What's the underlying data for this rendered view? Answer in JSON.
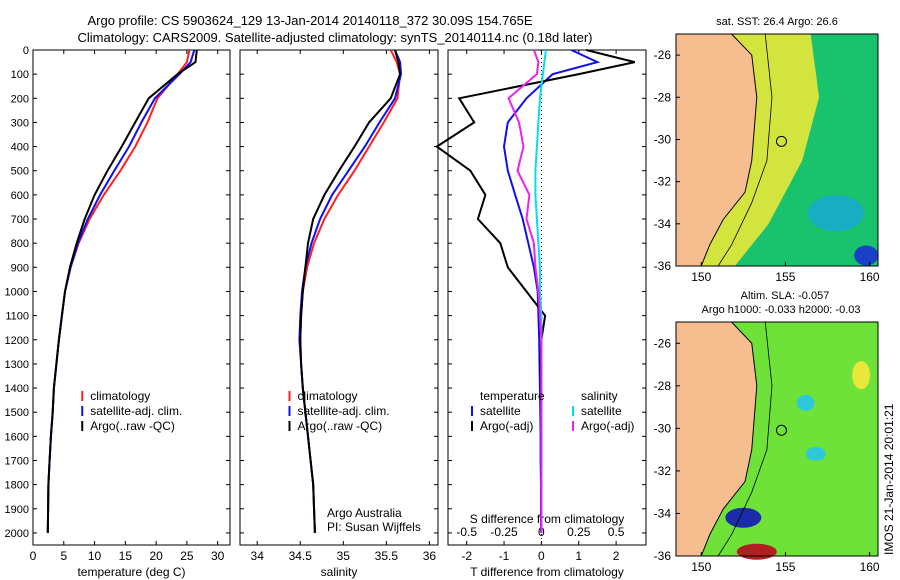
{
  "header": {
    "line1": "Argo profile: CS 5903624_129 13-Jan-2014 20140118_372 30.09S 154.765E",
    "line2": "Climatology: CARS2009. Satellite-adjusted climatology: synTS_20140114.nc (0.18d later)"
  },
  "colors": {
    "climatology": "#ff2020",
    "satellite": "#1010ee",
    "argo": "#000000",
    "sat_salinity": "#00e0f0",
    "argo_salinity": "#ee22ee",
    "land": "#f6be8e"
  },
  "credit": {
    "line1": "Argo Australia",
    "line2": "PI: Susan Wijffels"
  },
  "timestamp": "IMOS 21-Jan-2014 20:01:21",
  "maps": [
    {
      "title1": "sat. SST: 26.4 Argo: 26.6",
      "title2": "",
      "xticks": [
        150,
        155,
        160
      ],
      "yticks": [
        -26,
        -28,
        -30,
        -32,
        -34,
        -36
      ]
    },
    {
      "title1": "Altim. SLA: -0.057",
      "title2": "Argo h1000: -0.033 h2000: -0.03",
      "xticks": [
        150,
        155,
        160
      ],
      "yticks": [
        -26,
        -28,
        -30,
        -32,
        -34,
        -36
      ]
    }
  ],
  "chart_data": [
    {
      "type": "line",
      "xlabel": "temperature (deg C)",
      "ylabel": "",
      "xlim": [
        0,
        32
      ],
      "ylim": [
        2050,
        0
      ],
      "xticks": [
        0,
        5,
        10,
        15,
        20,
        25,
        30
      ],
      "yticks": [
        0,
        100,
        200,
        300,
        400,
        500,
        600,
        700,
        800,
        900,
        1000,
        1100,
        1200,
        1300,
        1400,
        1500,
        1600,
        1700,
        1800,
        1900,
        2000
      ],
      "legend": [
        "climatology",
        "satellite-adj. clim.",
        "Argo(..raw -QC)"
      ],
      "legend_position": "lower-center",
      "series": [
        {
          "name": "climatology",
          "color": "#ff2020",
          "x": [
            25.4,
            25.0,
            23.5,
            20.2,
            18.6,
            16.6,
            14.2,
            11.5,
            9.2,
            7.4,
            6.1,
            5.2,
            4.7,
            4.2,
            3.8,
            3.4,
            3.2,
            2.9,
            2.7,
            2.5,
            2.4
          ],
          "y": [
            0,
            50,
            100,
            200,
            300,
            400,
            500,
            600,
            700,
            800,
            900,
            1000,
            1100,
            1200,
            1300,
            1400,
            1500,
            1600,
            1700,
            1800,
            2000
          ]
        },
        {
          "name": "satellite-adj. clim.",
          "color": "#1010ee",
          "x": [
            26.2,
            25.6,
            23.8,
            19.8,
            17.6,
            15.6,
            13.2,
            10.9,
            8.9,
            7.3,
            6.1,
            5.2,
            4.7,
            4.2,
            3.8,
            3.4,
            3.2,
            2.9,
            2.7,
            2.5,
            2.4
          ],
          "y": [
            0,
            50,
            100,
            200,
            300,
            400,
            500,
            600,
            700,
            800,
            900,
            1000,
            1100,
            1200,
            1300,
            1400,
            1500,
            1600,
            1700,
            1800,
            2000
          ]
        },
        {
          "name": "Argo(..raw -QC)",
          "color": "#000000",
          "x": [
            26.6,
            26.4,
            23.5,
            18.8,
            16.6,
            14.4,
            12.1,
            10.0,
            8.4,
            7.1,
            6.0,
            5.2,
            4.7,
            4.2,
            3.8,
            3.4,
            3.2,
            2.9,
            2.7,
            2.5,
            2.4
          ],
          "y": [
            0,
            50,
            100,
            200,
            300,
            400,
            500,
            600,
            700,
            800,
            900,
            1000,
            1100,
            1200,
            1300,
            1400,
            1500,
            1600,
            1700,
            1800,
            2000
          ]
        }
      ]
    },
    {
      "type": "line",
      "xlabel": "salinity",
      "ylabel": "",
      "xlim": [
        33.8,
        36.1
      ],
      "ylim": [
        2050,
        0
      ],
      "xticks": [
        34,
        34.5,
        35,
        35.5,
        36
      ],
      "legend": [
        "climatology",
        "satellite-adj. clim.",
        "Argo(..raw -QC)"
      ],
      "legend_position": "lower-center",
      "series": [
        {
          "name": "climatology",
          "color": "#ff2020",
          "x": [
            35.55,
            35.62,
            35.66,
            35.63,
            35.47,
            35.3,
            35.13,
            34.94,
            34.78,
            34.66,
            34.58,
            34.53,
            34.51,
            34.5,
            34.51,
            34.53,
            34.56,
            34.59,
            34.62,
            34.65,
            34.67
          ],
          "y": [
            0,
            50,
            100,
            200,
            300,
            400,
            500,
            600,
            700,
            800,
            900,
            1000,
            1100,
            1200,
            1300,
            1400,
            1500,
            1600,
            1700,
            1800,
            2000
          ]
        },
        {
          "name": "satellite-adj. clim.",
          "color": "#1010ee",
          "x": [
            35.6,
            35.66,
            35.67,
            35.6,
            35.42,
            35.25,
            35.06,
            34.87,
            34.73,
            34.63,
            34.56,
            34.52,
            34.5,
            34.49,
            34.51,
            34.53,
            34.56,
            34.59,
            34.62,
            34.65,
            34.67
          ],
          "y": [
            0,
            50,
            100,
            200,
            300,
            400,
            500,
            600,
            700,
            800,
            900,
            1000,
            1100,
            1200,
            1300,
            1400,
            1500,
            1600,
            1700,
            1800,
            2000
          ]
        },
        {
          "name": "Argo(..raw -QC)",
          "color": "#000000",
          "x": [
            35.6,
            35.64,
            35.66,
            35.55,
            35.3,
            35.13,
            34.95,
            34.78,
            34.65,
            34.59,
            34.56,
            34.53,
            34.51,
            34.5,
            34.51,
            34.53,
            34.56,
            34.59,
            34.62,
            34.65,
            34.67
          ],
          "y": [
            0,
            50,
            100,
            200,
            300,
            400,
            500,
            600,
            700,
            800,
            900,
            1000,
            1100,
            1200,
            1300,
            1400,
            1500,
            1600,
            1700,
            1800,
            2000
          ]
        }
      ]
    },
    {
      "type": "line",
      "xlabel": "T difference from climatology",
      "xlabel_top": "S difference from climatology",
      "xlim": [
        -2.5,
        2.8
      ],
      "ylim": [
        2050,
        0
      ],
      "xticks": [
        -2,
        -1,
        0,
        1,
        2
      ],
      "xticks_top": [
        "-0.5",
        "-0.25",
        "0",
        "0.25",
        "0.5"
      ],
      "legend_titles": [
        "temperature",
        "salinity"
      ],
      "legend": [
        "satellite",
        "Argo(-adj)",
        "satellite",
        "Argo(-adj)"
      ],
      "legend_position": "lower-center",
      "series": [
        {
          "name": "satellite",
          "group": "temperature",
          "color": "#1010ee",
          "x": [
            0.8,
            1.5,
            0.3,
            -0.4,
            -0.9,
            -1.0,
            -0.9,
            -0.7,
            -0.5,
            -0.35,
            -0.2,
            -0.1,
            -0.08,
            -0.06,
            -0.05,
            -0.04,
            -0.03,
            -0.02,
            -0.02,
            -0.01,
            -0.01
          ],
          "y": [
            0,
            50,
            100,
            200,
            300,
            400,
            500,
            600,
            700,
            800,
            900,
            1000,
            1100,
            1200,
            1300,
            1400,
            1500,
            1600,
            1700,
            1800,
            2000
          ]
        },
        {
          "name": "Argo(-adj)",
          "group": "temperature",
          "color": "#000000",
          "x": [
            1.2,
            2.5,
            1.0,
            -2.2,
            -1.8,
            -2.8,
            -1.9,
            -1.5,
            -1.7,
            -1.1,
            -0.9,
            -0.4,
            0.1,
            0.0,
            -0.02,
            -0.01,
            0.0,
            0.0,
            0.0,
            0.0,
            0.0
          ],
          "y": [
            0,
            50,
            100,
            200,
            300,
            400,
            500,
            600,
            700,
            800,
            900,
            1000,
            1100,
            1200,
            1300,
            1400,
            1500,
            1600,
            1700,
            1800,
            2000
          ]
        },
        {
          "name": "satellite",
          "group": "salinity",
          "color": "#00e0f0",
          "x": [
            0.03,
            0.02,
            0.01,
            -0.01,
            -0.02,
            -0.03,
            -0.04,
            -0.04,
            -0.03,
            -0.02,
            -0.01,
            -0.01,
            0.0,
            0.0,
            0.0,
            0.0,
            0.0,
            0.0,
            0.0,
            0.0,
            0.0
          ],
          "y": [
            0,
            50,
            100,
            200,
            300,
            400,
            500,
            600,
            700,
            800,
            900,
            1000,
            1100,
            1200,
            1300,
            1400,
            1500,
            1600,
            1700,
            1800,
            2000
          ]
        },
        {
          "name": "Argo(-adj)",
          "group": "salinity",
          "color": "#ee22ee",
          "x": [
            -0.05,
            -0.02,
            -0.03,
            -0.22,
            -0.15,
            -0.12,
            -0.16,
            -0.08,
            -0.1,
            -0.05,
            -0.04,
            -0.02,
            -0.01,
            0.0,
            0.0,
            0.0,
            0.0,
            0.0,
            0.0,
            0.0,
            0.0
          ],
          "y": [
            0,
            50,
            100,
            200,
            300,
            400,
            500,
            600,
            700,
            800,
            900,
            1000,
            1100,
            1200,
            1300,
            1400,
            1500,
            1600,
            1700,
            1800,
            2000
          ]
        }
      ]
    }
  ]
}
